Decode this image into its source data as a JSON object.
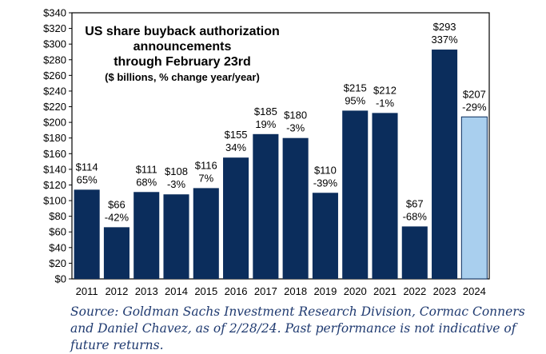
{
  "chart_data": {
    "type": "bar",
    "title_lines": [
      "US share buyback authorization",
      "announcements",
      "through February 23rd"
    ],
    "subtitle": "($ billions, % change year/year)",
    "categories": [
      "2011",
      "2012",
      "2013",
      "2014",
      "2015",
      "2016",
      "2017",
      "2018",
      "2019",
      "2020",
      "2021",
      "2022",
      "2023",
      "2024"
    ],
    "values": [
      114,
      66,
      111,
      108,
      116,
      155,
      185,
      180,
      110,
      215,
      212,
      67,
      293,
      207
    ],
    "value_labels": [
      "$114",
      "$66",
      "$111",
      "$108",
      "$116",
      "$155",
      "$185",
      "$180",
      "$110",
      "$215",
      "$212",
      "$67",
      "$293",
      "$207"
    ],
    "pct_labels": [
      "65%",
      "-42%",
      "68%",
      "-3%",
      "7%",
      "34%",
      "19%",
      "-3%",
      "-39%",
      "95%",
      "-1%",
      "-68%",
      "337%",
      "-29%"
    ],
    "highlight_index": 13,
    "ylim": [
      0,
      340
    ],
    "ytick_step": 20,
    "ytick_labels": [
      "$0",
      "$20",
      "$40",
      "$60",
      "$80",
      "$100",
      "$120",
      "$140",
      "$160",
      "$180",
      "$200",
      "$220",
      "$240",
      "$260",
      "$280",
      "$300",
      "$320",
      "$340"
    ],
    "xlabel": "",
    "ylabel": "",
    "colors": {
      "bar": "#0b2d5c",
      "highlight": "#a9cfee",
      "highlight_edge": "#0b2d5c",
      "text": "#000000",
      "source": "#1f3a70"
    }
  },
  "source_note": "Source: Goldman Sachs Investment Research Division, Cormac Conners and Daniel Chavez, as of 2/28/24. Past performance is not indicative of future returns."
}
